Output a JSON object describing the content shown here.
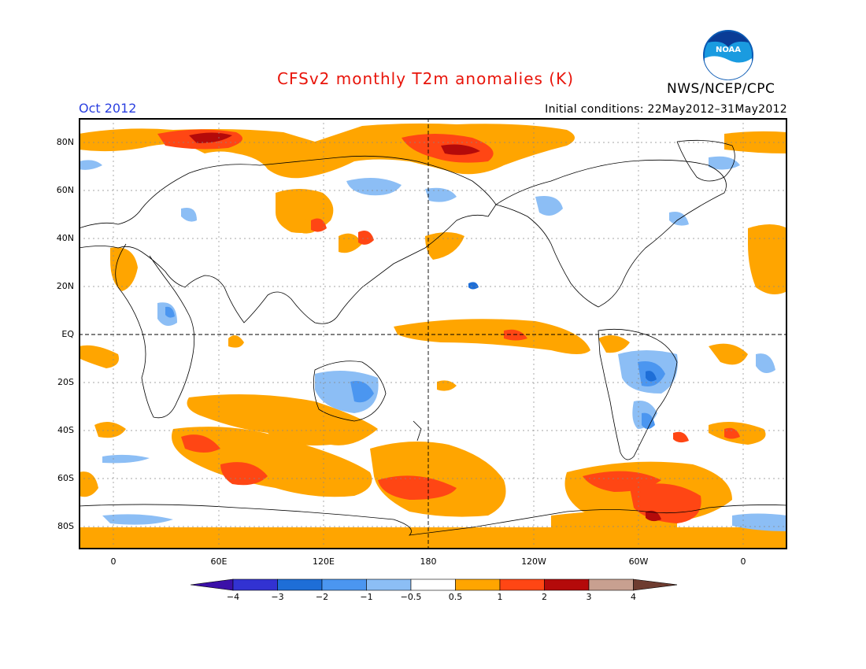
{
  "header": {
    "title": "CFSv2 monthly T2m anomalies (K)",
    "month": "Oct 2012",
    "initial_conditions": "Initial conditions: 22May2012–31May2012",
    "agency": "NWS/NCEP/CPC",
    "logo_text": "NOAA"
  },
  "axes": {
    "y_ticks": [
      "80N",
      "60N",
      "40N",
      "20N",
      "EQ",
      "20S",
      "40S",
      "60S",
      "80S"
    ],
    "x_ticks": [
      "0",
      "60E",
      "120E",
      "180",
      "120W",
      "60W",
      "0"
    ]
  },
  "colorbar": {
    "labels": [
      "−4",
      "−3",
      "−2",
      "−1",
      "−0.5",
      "0.5",
      "1",
      "2",
      "3",
      "4"
    ],
    "colors": [
      "#3b10a8",
      "#3232d2",
      "#1e6ed7",
      "#4b96f0",
      "#8cbef5",
      "#ffffff",
      "#ffa500",
      "#ff4614",
      "#b40a0a",
      "#c8a090",
      "#6e3c30"
    ]
  },
  "map": {
    "anomaly_colors": {
      "warm_weak": "#ffa500",
      "warm_mid": "#ff4614",
      "warm_strong": "#b40a0a",
      "cool_weak": "#8cbef5",
      "cool_mid": "#4b96f0",
      "cool_strong": "#1e6ed7"
    },
    "grid": true,
    "dateline_marker": true,
    "equator_marker": true
  }
}
